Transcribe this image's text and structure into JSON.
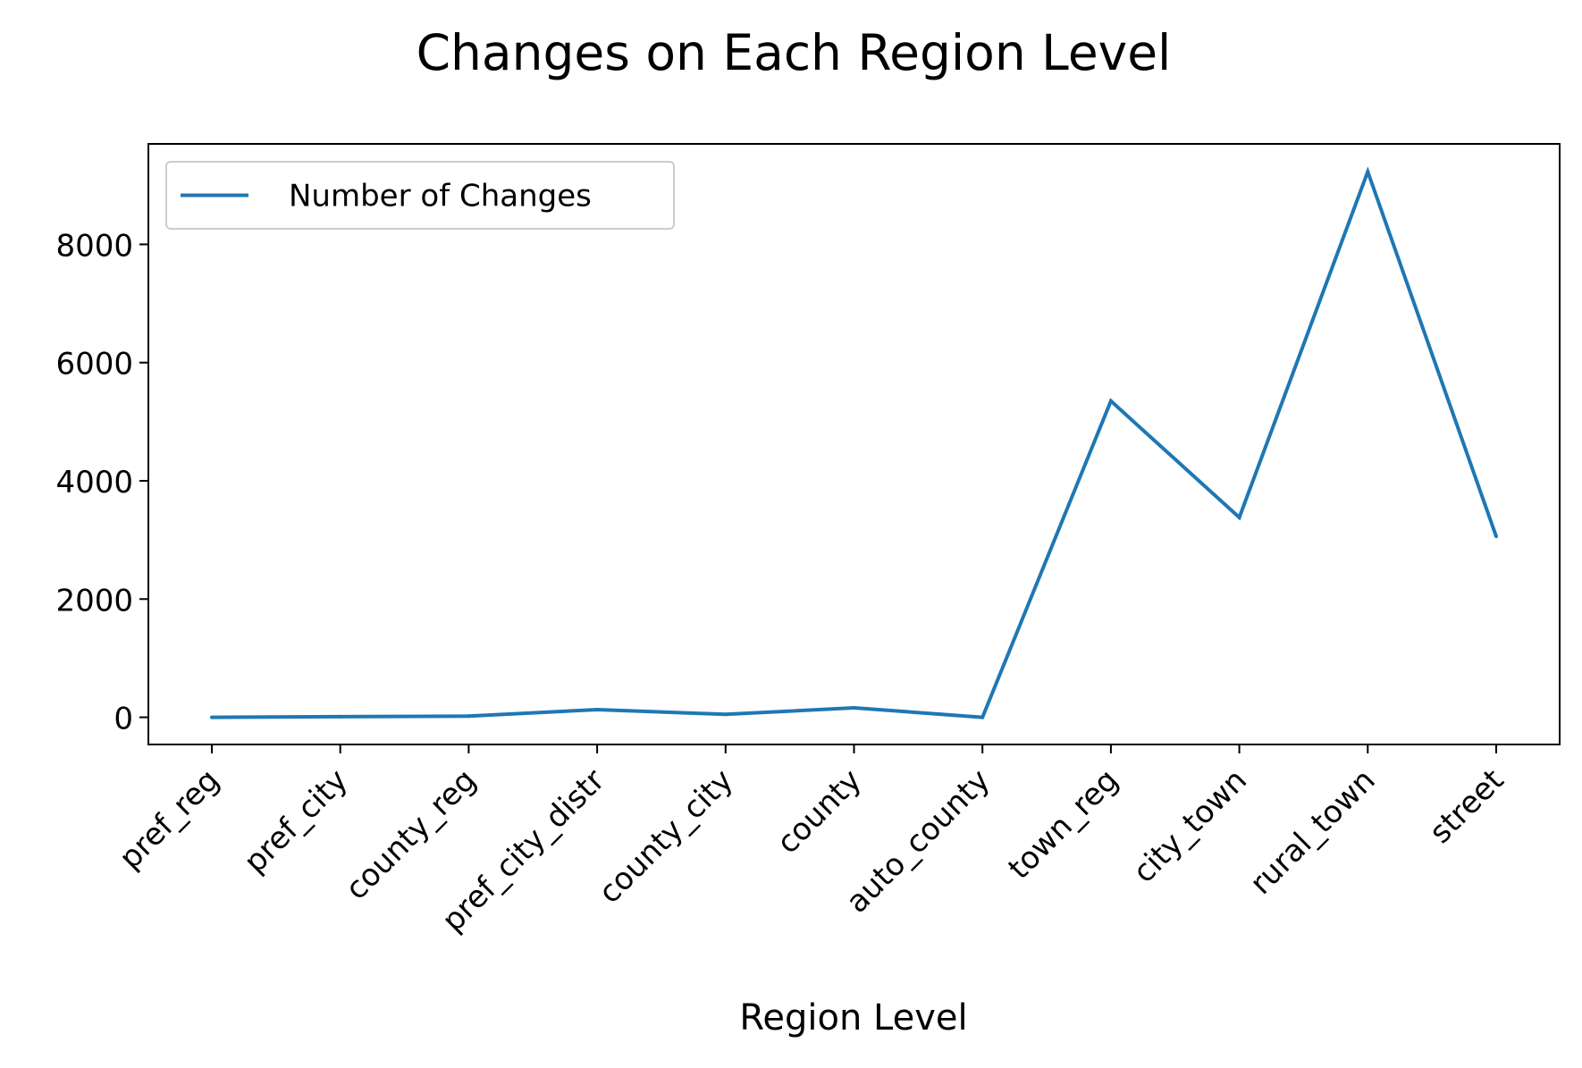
{
  "chart_data": {
    "type": "line",
    "title": "Changes on Each Region Level",
    "xlabel": "Region Level",
    "ylabel": "",
    "categories": [
      "pref_reg",
      "pref_city",
      "county_reg",
      "pref_city_distr",
      "county_city",
      "county",
      "auto_county",
      "town_reg",
      "city_town",
      "rural_town",
      "street"
    ],
    "series": [
      {
        "name": "Number of Changes",
        "color": "#1f77b4",
        "values": [
          0,
          10,
          20,
          130,
          50,
          160,
          0,
          5350,
          3380,
          9230,
          3060
        ]
      }
    ],
    "ylim": [
      -460,
      9700
    ],
    "yticks": [
      0,
      2000,
      4000,
      6000,
      8000
    ],
    "ytick_labels": [
      "0",
      "2000",
      "4000",
      "6000",
      "8000"
    ],
    "grid": false,
    "legend": "top-left"
  }
}
